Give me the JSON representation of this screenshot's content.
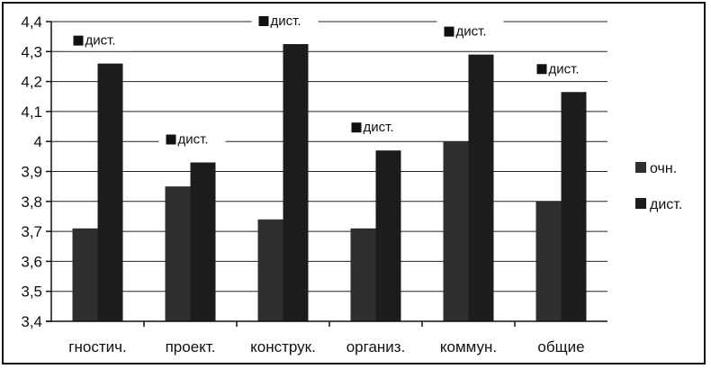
{
  "chart_data": {
    "type": "bar",
    "categories": [
      "гностич.",
      "проект.",
      "конструк.",
      "организ.",
      "коммун.",
      "общие"
    ],
    "series": [
      {
        "name": "очн.",
        "values": [
          3.71,
          3.85,
          3.74,
          3.71,
          4.0,
          3.8
        ],
        "color": "#2f2f2f"
      },
      {
        "name": "дист.",
        "values": [
          4.26,
          3.93,
          4.325,
          3.97,
          4.29,
          4.165
        ],
        "color": "#1c1c1c"
      }
    ],
    "ylim": [
      3.4,
      4.4
    ],
    "yticks": [
      "3,4",
      "3,5",
      "3,6",
      "3,7",
      "3,8",
      "3,9",
      "4",
      "4,1",
      "4,2",
      "4,3",
      "4,4"
    ],
    "data_labels": [
      "дист.",
      "дист.",
      "дист.",
      "дист.",
      "дист.",
      "дист."
    ],
    "grid": true,
    "legend_position": "right"
  }
}
